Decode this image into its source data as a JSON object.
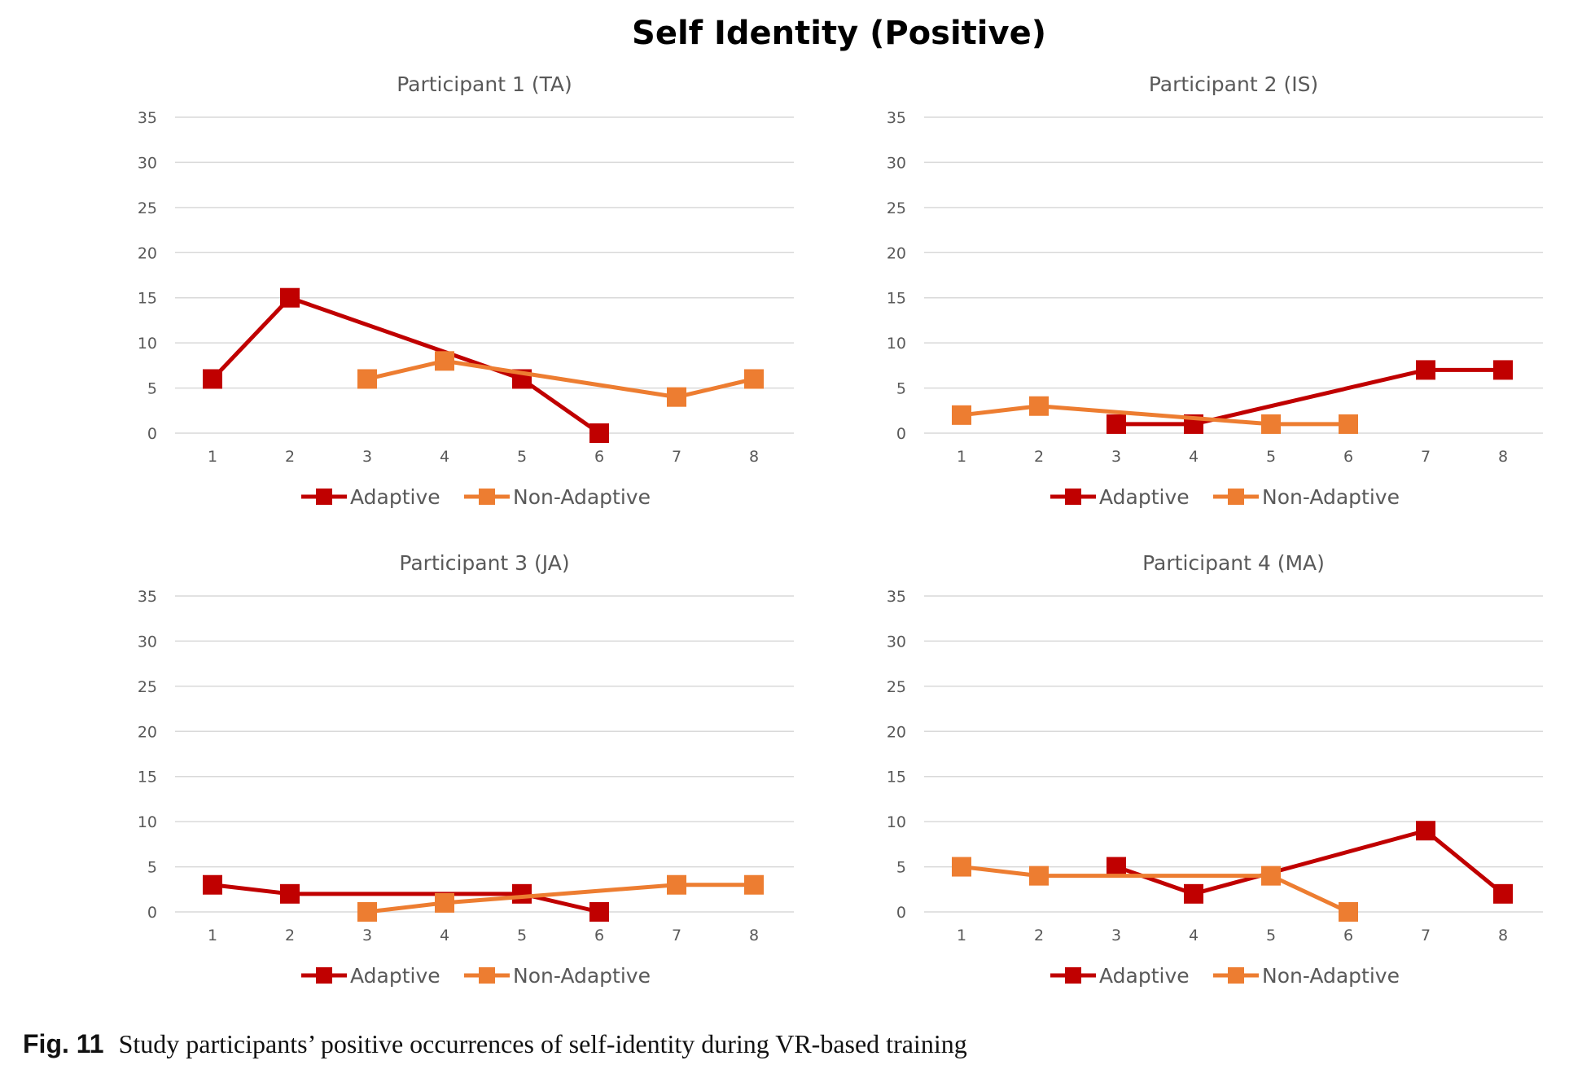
{
  "title": "Self Identity (Positive)",
  "caption": {
    "label": "Fig. 11",
    "text": "Study participants’ positive occurrences of self-identity during VR-based training"
  },
  "colors": {
    "adaptive": "#C00000",
    "non_adaptive": "#ED7D31",
    "grid": "#D9D9D9",
    "tick": "#595959"
  },
  "chart_data": [
    {
      "type": "line",
      "title": "Participant 1 (TA)",
      "x": [
        1,
        2,
        3,
        4,
        5,
        6,
        7,
        8
      ],
      "ylim": [
        0,
        35
      ],
      "yticks": [
        0,
        5,
        10,
        15,
        20,
        25,
        30,
        35
      ],
      "grid": true,
      "legend": "bottom",
      "series": [
        {
          "name": "Adaptive",
          "values": [
            6,
            15,
            null,
            null,
            6,
            0,
            null,
            null
          ]
        },
        {
          "name": "Non-Adaptive",
          "values": [
            null,
            null,
            6,
            8,
            null,
            null,
            4,
            6
          ]
        }
      ]
    },
    {
      "type": "line",
      "title": "Participant 2 (IS)",
      "x": [
        1,
        2,
        3,
        4,
        5,
        6,
        7,
        8
      ],
      "ylim": [
        0,
        35
      ],
      "yticks": [
        0,
        5,
        10,
        15,
        20,
        25,
        30,
        35
      ],
      "grid": true,
      "legend": "bottom",
      "series": [
        {
          "name": "Adaptive",
          "values": [
            null,
            null,
            1,
            1,
            null,
            null,
            7,
            7
          ]
        },
        {
          "name": "Non-Adaptive",
          "values": [
            2,
            3,
            null,
            null,
            1,
            1,
            null,
            null
          ]
        }
      ]
    },
    {
      "type": "line",
      "title": "Participant 3 (JA)",
      "x": [
        1,
        2,
        3,
        4,
        5,
        6,
        7,
        8
      ],
      "ylim": [
        0,
        35
      ],
      "yticks": [
        0,
        5,
        10,
        15,
        20,
        25,
        30,
        35
      ],
      "grid": true,
      "legend": "bottom",
      "series": [
        {
          "name": "Adaptive",
          "values": [
            3,
            2,
            null,
            null,
            2,
            0,
            null,
            null
          ]
        },
        {
          "name": "Non-Adaptive",
          "values": [
            null,
            null,
            0,
            1,
            null,
            null,
            3,
            3
          ]
        }
      ]
    },
    {
      "type": "line",
      "title": "Participant 4 (MA)",
      "x": [
        1,
        2,
        3,
        4,
        5,
        6,
        7,
        8
      ],
      "ylim": [
        0,
        35
      ],
      "yticks": [
        0,
        5,
        10,
        15,
        20,
        25,
        30,
        35
      ],
      "grid": true,
      "legend": "bottom",
      "series": [
        {
          "name": "Adaptive",
          "values": [
            null,
            null,
            5,
            2,
            null,
            null,
            9,
            2
          ]
        },
        {
          "name": "Non-Adaptive",
          "values": [
            5,
            4,
            null,
            null,
            4,
            0,
            null,
            null
          ]
        }
      ]
    }
  ]
}
